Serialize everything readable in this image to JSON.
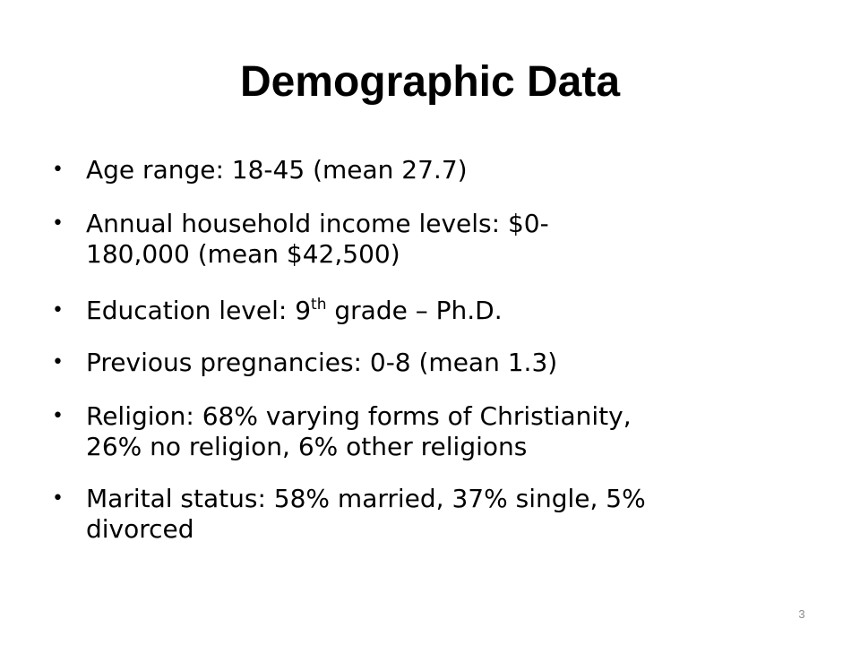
{
  "title": "Demographic Data",
  "bullets": [
    {
      "lines": [
        "Age range: 18-45 (mean 27.7)"
      ]
    },
    {
      "lines": [
        "Annual household income levels: $0-",
        "180,000 (mean $42,500)"
      ]
    },
    {
      "lines": [
        "Education level: 9"
      ],
      "sup": "th",
      "rest": " grade – Ph.D."
    },
    {
      "lines": [
        "Previous pregnancies: 0-8 (mean 1.3)"
      ]
    },
    {
      "lines": [
        "Religion: 68% varying forms of Christianity,",
        "26% no religion, 6% other religions"
      ]
    },
    {
      "lines": [
        "Marital status: 58% married, 37% single, 5%",
        "divorced"
      ]
    }
  ],
  "page_number": "3"
}
